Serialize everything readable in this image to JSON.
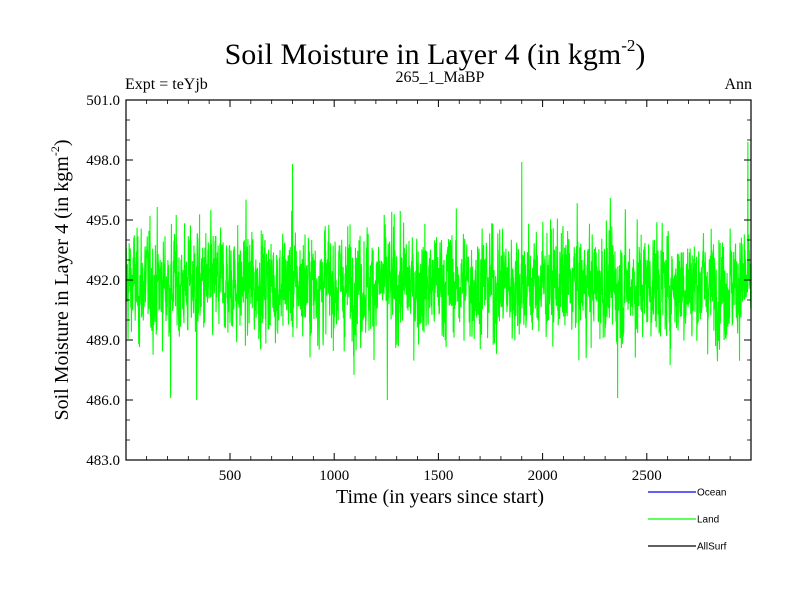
{
  "chart_data": {
    "type": "line",
    "title": "Soil Moisture in Layer 4 (in kgm",
    "title_sup": "-2",
    "title_close": ")",
    "subtitle_left": "Expt = teYjb",
    "subtitle_center": "265_1_MaBP",
    "subtitle_right": "Ann",
    "xlabel": "Time (in years since start)",
    "ylabel": "Soil Moisture in Layer 4 (in kgm",
    "ylabel_sup": "-2",
    "ylabel_close": ")",
    "xlim": [
      1,
      3000
    ],
    "ylim": [
      483.0,
      501.0
    ],
    "xticks": [
      500,
      1000,
      1500,
      2000,
      2500
    ],
    "xtick_labels": [
      "500",
      "1000",
      "1500",
      "2000",
      "2500"
    ],
    "yticks": [
      483.0,
      486.0,
      489.0,
      492.0,
      495.0,
      498.0,
      501.0
    ],
    "ytick_labels": [
      "483.0",
      "486.0",
      "489.0",
      "492.0",
      "495.0",
      "498.0",
      "501.0"
    ],
    "series": [
      {
        "name": "Land",
        "color": "#00ff00",
        "n_points": 3000,
        "mean": 491.8,
        "std": 1.5,
        "notable_points": [
          {
            "x": 215,
            "y": 486.1
          },
          {
            "x": 340,
            "y": 486.0
          },
          {
            "x": 800,
            "y": 497.8
          },
          {
            "x": 1255,
            "y": 486.0
          },
          {
            "x": 1900,
            "y": 497.9
          },
          {
            "x": 2360,
            "y": 486.1
          },
          {
            "x": 2985,
            "y": 498.9
          }
        ]
      }
    ],
    "legend": [
      {
        "name": "Ocean",
        "color": "#0000ff"
      },
      {
        "name": "Land",
        "color": "#00ff00"
      },
      {
        "name": "AllSurf",
        "color": "#000000"
      }
    ]
  }
}
